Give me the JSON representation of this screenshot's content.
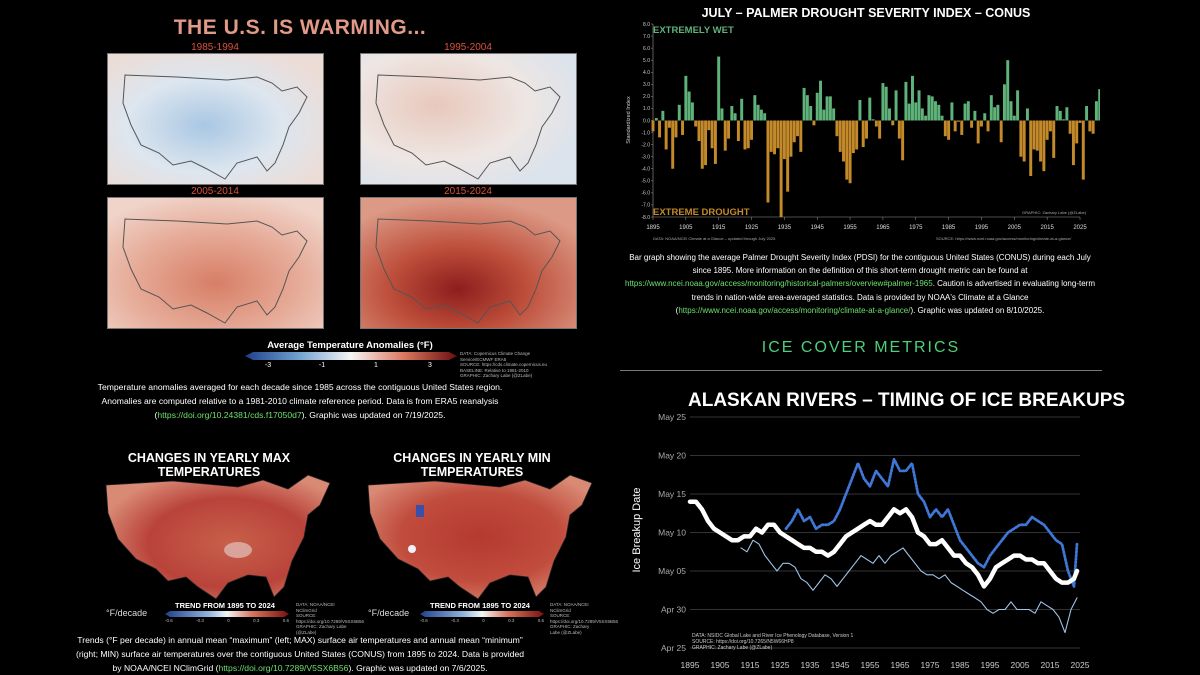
{
  "left": {
    "title": "THE U.S. IS WARMING...",
    "maps": [
      {
        "label": "1985-1994",
        "tint": "#dfe3ea",
        "warmth": 0.1
      },
      {
        "label": "1995-2004",
        "tint": "#eed9d3",
        "warmth": 0.3
      },
      {
        "label": "2005-2014",
        "tint": "#e3a08d",
        "warmth": 0.6
      },
      {
        "label": "2015-2024",
        "tint": "#c55a44",
        "warmth": 0.9
      }
    ],
    "colorbar": {
      "title": "Average Temperature Anomalies (°F)",
      "ticks": [
        "-3",
        "-1",
        "1",
        "3"
      ]
    },
    "credits": {
      "lines": [
        "DATA: Copernicus Climate Change Service/ECMWF ERA5",
        "SOURCE: https://cds.climate.copernicus.eu",
        "BASELINE: Relative to 1981-2010",
        "GRAPHIC: Zachary Labe (@ZLabe)"
      ]
    },
    "caption": {
      "text1": "Temperature anomalies averaged for each decade since 1985 across the contiguous United States region. Anomalies are computed relative to a 1981-2010 climate reference period. Data is from ERA5 reanalysis (",
      "link": "https://doi.org/10.24381/cds.f17050d7",
      "text2": "). Graphic was updated on 7/19/2025."
    },
    "trend_maps": [
      {
        "title": "CHANGES IN YEARLY MAX TEMPERATURES"
      },
      {
        "title": "CHANGES IN YEARLY MIN TEMPERATURES"
      }
    ],
    "trend_bar": {
      "unit": "°F/decade",
      "title": "TREND FROM 1895 TO 2024",
      "ticks": [
        "-0.6",
        "-0.3",
        "0",
        "0.3",
        "0.6"
      ]
    },
    "trend_credits": [
      "DATA: NOAA/NCEI NClimGrid",
      "SOURCE: https://doi.org/10.7289/V5SX6B56",
      "GRAPHIC: Zachary Labe (@ZLabe)"
    ],
    "caption2": {
      "text1": "Trends (°F per decade) in annual mean “maximum” (left; MAX) surface air temperatures and annual mean “minimum” (right; MIN) surface air temperatures over the contiguous United States (CONUS) from 1895 to 2024. Data is provided by NOAA/NCEI NClimGrid (",
      "link": "https://doi.org/10.7289/V5SX6B56",
      "text2": "). Graphic was updated on 7/6/2025."
    }
  },
  "pdsi": {
    "caption": {
      "text1": "Bar graph showing the average Palmer Drought Severity Index (PDSI) for the contiguous United States (CONUS) during each July since 1895. More information on the definition of this short-term drought metric can be found at ",
      "link1": "https://www.ncei.noaa.gov/access/monitoring/historical-palmers/overview#palmer-1965",
      "text2": ". Caution is advertised in evaluating long-term trends in nation-wide area-averaged statistics. Data is provided by NOAA's Climate at a Glance (",
      "link2": "https://www.ncei.noaa.gov/access/monitoring/climate-at-a-glance/",
      "text3": "). Graphic was updated on 8/10/2025."
    }
  },
  "ice": {
    "section_title": "ICE COVER METRICS"
  },
  "chart_data": [
    {
      "type": "bar",
      "title": "JULY – PALMER DROUGHT SEVERITY INDEX – CONUS",
      "ylabel": "Standardized Index",
      "ylim": [
        -8,
        8
      ],
      "yticks": [
        "8.0",
        "7.0",
        "6.0",
        "5.0",
        "4.0",
        "3.0",
        "2.0",
        "1.0",
        "0.0",
        "-1.0",
        "-2.0",
        "-3.0",
        "-4.0",
        "-5.0",
        "-6.0",
        "-7.0",
        "-8.0"
      ],
      "xticks": [
        "1895",
        "1905",
        "1915",
        "1925",
        "1935",
        "1945",
        "1955",
        "1965",
        "1975",
        "1985",
        "1995",
        "2005",
        "2015",
        "2025"
      ],
      "annotations": {
        "top": "EXTREMELY WET",
        "bottom": "EXTREME DROUGHT"
      },
      "colors": {
        "positive": "#5fb27a",
        "negative": "#c48a2a"
      },
      "footer_left": "DATA: NOAA/NCEI Climate at a Glance – updated through July 2025",
      "footer_right": "SOURCE: https://www.ncei.noaa.gov/access/monitoring/climate-at-a-glance/",
      "graphic_credit": "GRAPHIC: Zachary Labe (@ZLabe)",
      "x_start": 1895,
      "values": [
        -0.9,
        0.2,
        -1.4,
        0.8,
        -2.4,
        -0.6,
        -4.0,
        -1.4,
        1.3,
        -1.2,
        3.7,
        2.4,
        1.5,
        -0.5,
        -1.7,
        -4.0,
        -3.7,
        -0.8,
        -2.3,
        -3.6,
        5.3,
        1.0,
        -2.5,
        -1.5,
        1.2,
        0.6,
        -1.7,
        1.8,
        -2.4,
        -2.3,
        -1.6,
        2.1,
        1.3,
        0.9,
        0.6,
        -6.8,
        -2.6,
        -2.8,
        -2.3,
        -8.0,
        -3.2,
        -5.9,
        -3.0,
        -1.8,
        -1.3,
        -2.6,
        2.7,
        2.1,
        1.2,
        -0.4,
        2.3,
        3.3,
        0.9,
        2.0,
        2.0,
        1.0,
        -1.3,
        -2.6,
        -3.4,
        -4.9,
        -5.2,
        -2.7,
        -2.4,
        1.7,
        -2.2,
        -1.5,
        1.9,
        0.1,
        -0.5,
        -1.5,
        3.1,
        2.8,
        1.0,
        -0.4,
        2.5,
        -1.5,
        -3.3,
        3.2,
        1.4,
        3.7,
        1.5,
        2.5,
        1.0,
        0.4,
        2.1,
        2.0,
        1.6,
        1.3,
        0.4,
        -1.3,
        -1.6,
        1.5,
        -0.9,
        -0.1,
        -1.2,
        1.4,
        1.6,
        -0.6,
        0.8,
        -1.9,
        -0.5,
        0.6,
        -0.9,
        2.1,
        1.1,
        1.3,
        -1.8,
        3.0,
        5.0,
        1.6,
        0.4,
        2.5,
        -3.0,
        -3.4,
        1.0,
        -4.6,
        -2.4,
        -2.5,
        -3.4,
        -4.2,
        -1.6,
        -0.9,
        -3.1,
        1.2,
        0.8,
        0.1,
        1.1,
        -1.1,
        -3.7,
        -1.9,
        -0.2,
        -4.9,
        1.2,
        -0.9,
        -1.1,
        1.6,
        2.6,
        0.7,
        -1.2,
        -1.4,
        0.5,
        -0.6,
        5.2,
        -2.6,
        -1.5,
        -1.6,
        -2.0,
        -2.0,
        -1.6
      ],
      "_note_none": ""
    },
    {
      "type": "line",
      "title": "ALASKAN RIVERS – TIMING OF ICE BREAKUPS",
      "ylabel": "Ice Breakup Date",
      "ylim_days": [
        -6,
        25
      ],
      "yticks": [
        "May 25",
        "May 20",
        "May 15",
        "May 10",
        "May 05",
        "Apr 30",
        "Apr 25"
      ],
      "xticks": [
        "1895",
        "1905",
        "1915",
        "1925",
        "1935",
        "1945",
        "1955",
        "1965",
        "1975",
        "1985",
        "1995",
        "2005",
        "2015",
        "2025"
      ],
      "footer": [
        "DATA: NSIDC Global Lake and River Ice Phenology Database, Version 1",
        "SOURCE: https://doi.org/10.7265/N5W66HP8",
        "GRAPHIC: Zachary Labe (@ZLabe)"
      ],
      "series": [
        {
          "color": "#ffffff",
          "x": [
            1895,
            1897,
            1899,
            1901,
            1903,
            1905,
            1907,
            1909,
            1911,
            1913,
            1915,
            1917,
            1919,
            1921,
            1923,
            1925,
            1927,
            1929,
            1931,
            1933,
            1935,
            1937,
            1939,
            1941,
            1943,
            1945,
            1947,
            1949,
            1951,
            1953,
            1955,
            1957,
            1959,
            1961,
            1963,
            1965,
            1967,
            1969,
            1971,
            1973,
            1975,
            1977,
            1979,
            1981,
            1983,
            1985,
            1987,
            1989,
            1991,
            1993,
            1995,
            1997,
            1999,
            2001,
            2003,
            2005,
            2007,
            2009,
            2011,
            2013,
            2015,
            2017,
            2019,
            2021,
            2023,
            2024
          ],
          "values": [
            14,
            14,
            13,
            11.5,
            10.5,
            10,
            9.5,
            9,
            9,
            9.5,
            9.5,
            10.5,
            10,
            11,
            11,
            10,
            9.5,
            9,
            8.5,
            8,
            8,
            7.5,
            7.5,
            7,
            7.5,
            8.5,
            9.5,
            10,
            10.5,
            11,
            11.5,
            11,
            11,
            12,
            13,
            12.5,
            13,
            12,
            10,
            9.5,
            8.5,
            8.5,
            9,
            8,
            7,
            7,
            6,
            5.5,
            4.5,
            3,
            4,
            5.5,
            6,
            6.5,
            7,
            7,
            6.5,
            6.5,
            6,
            6,
            5,
            4,
            3.5,
            3.5,
            4,
            5
          ]
        },
        {
          "color": "#3f77d6",
          "x": [
            1927,
            1929,
            1931,
            1933,
            1935,
            1937,
            1939,
            1941,
            1943,
            1945,
            1947,
            1949,
            1951,
            1953,
            1955,
            1957,
            1959,
            1961,
            1963,
            1965,
            1967,
            1969,
            1971,
            1973,
            1975,
            1977,
            1979,
            1981,
            1983,
            1985,
            1987,
            1989,
            1991,
            1993,
            1995,
            1997,
            1999,
            2001,
            2003,
            2005,
            2007,
            2009,
            2011,
            2013,
            2015,
            2017,
            2019,
            2021,
            2023,
            2024
          ],
          "values": [
            10.5,
            11.5,
            13,
            11.5,
            12,
            10.5,
            11,
            11,
            11.5,
            13,
            15,
            17,
            19,
            17,
            16,
            18,
            17,
            16,
            19.5,
            18,
            18,
            19,
            15,
            14,
            12,
            13,
            12,
            13,
            11,
            9,
            8,
            7,
            6,
            5.5,
            7,
            8,
            9,
            10,
            10.5,
            11,
            11,
            12,
            11.5,
            11,
            10,
            9,
            8.5,
            5,
            3,
            8.5
          ]
        },
        {
          "color": "#9fc4e8",
          "x": [
            1912,
            1914,
            1916,
            1918,
            1920,
            1922,
            1924,
            1926,
            1928,
            1930,
            1932,
            1934,
            1936,
            1938,
            1940,
            1942,
            1944,
            1946,
            1948,
            1950,
            1952,
            1954,
            1956,
            1958,
            1960,
            1962,
            1964,
            1966,
            1968,
            1970,
            1972,
            1974,
            1976,
            1978,
            1980,
            1982,
            1984,
            1986,
            1988,
            1990,
            1992,
            1994,
            1996,
            1998,
            2000,
            2002,
            2004,
            2006,
            2008,
            2010,
            2012,
            2014,
            2016,
            2018,
            2020,
            2022,
            2024
          ],
          "values": [
            8,
            7.5,
            9,
            8.5,
            7,
            6,
            5,
            6,
            6,
            5.5,
            4,
            3.5,
            2.5,
            3.5,
            4.5,
            4,
            3,
            4,
            5,
            6,
            7,
            6.5,
            6,
            7,
            6,
            7,
            7.5,
            8,
            7,
            6,
            5,
            4.5,
            4.5,
            4,
            4.5,
            3.5,
            3,
            2.5,
            2,
            1.5,
            1,
            0,
            -0.5,
            0,
            0,
            1,
            0,
            0,
            0,
            -0.5,
            1,
            0.5,
            0,
            -1,
            -3,
            0,
            1.5
          ]
        }
      ]
    }
  ]
}
